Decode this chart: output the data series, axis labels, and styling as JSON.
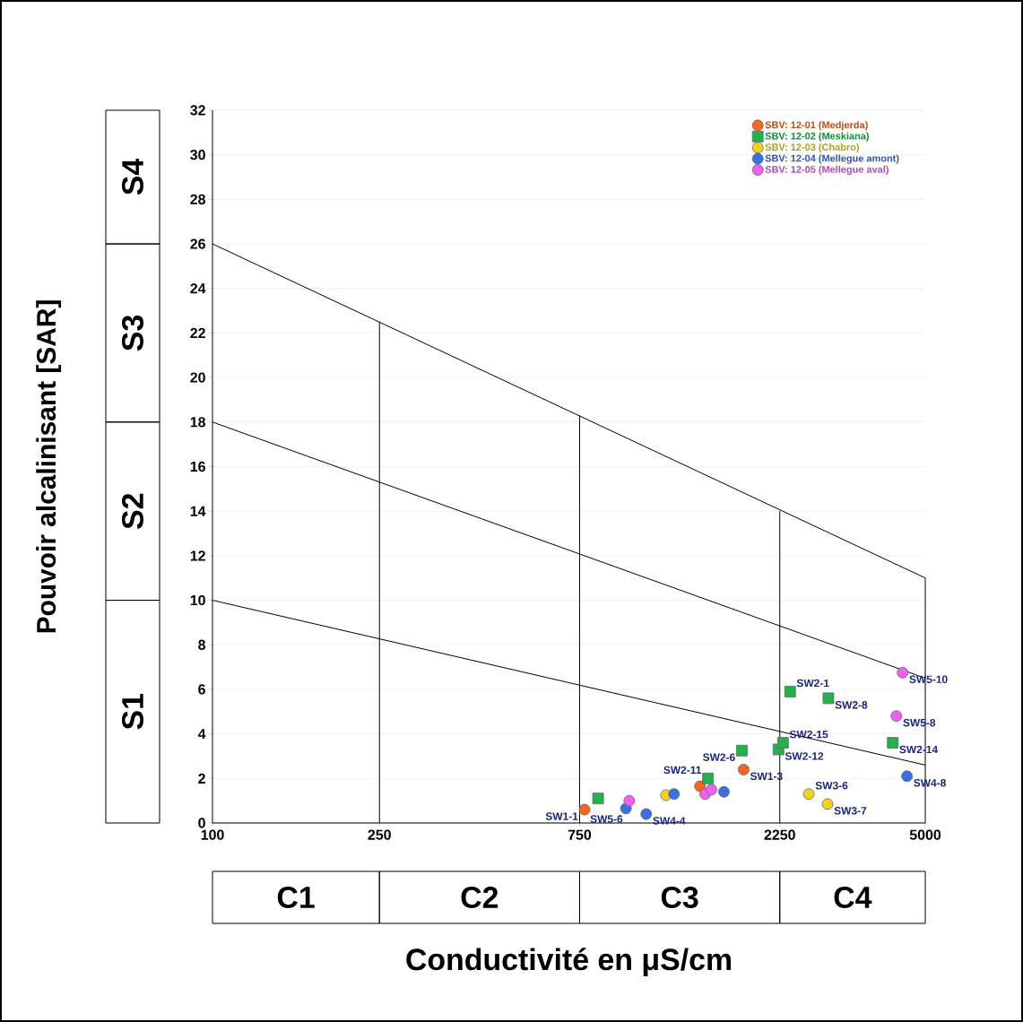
{
  "chart_data": {
    "type": "scatter",
    "xlabel": "Conductivité en μS/cm",
    "ylabel": "Pouvoir alcalinisant [SAR]",
    "log": "x",
    "xlim": [
      100,
      5000
    ],
    "xticks": [
      100,
      250,
      750,
      2250,
      5000
    ],
    "ylim": [
      0,
      32
    ],
    "yticks": [
      0,
      2,
      4,
      6,
      8,
      10,
      12,
      14,
      16,
      18,
      20,
      22,
      24,
      26,
      28,
      30,
      32
    ],
    "grid": "y",
    "legend": "top right",
    "series": [
      {
        "name": "SBV: 12-01 (Medjerda)",
        "color": "#f26522",
        "marker": "circle",
        "x": [
          771,
          1452,
          1845
        ],
        "values": [
          0.6,
          1.65,
          2.4
        ]
      },
      {
        "name": "SBV: 12-02 (Meskiana)",
        "color": "#22b14c",
        "marker": "square",
        "x": [
          830,
          1517,
          1827,
          2234,
          2290,
          2381,
          2938,
          4182
        ],
        "values": [
          1.1,
          2.0,
          3.25,
          3.3,
          3.6,
          5.9,
          5.6,
          3.6
        ]
      },
      {
        "name": "SBV: 12-03 (Chabro)",
        "color": "#f2d024",
        "marker": "circle",
        "x": [
          1205,
          2638,
          2924
        ],
        "values": [
          1.25,
          1.3,
          0.85
        ]
      },
      {
        "name": "SBV: 12-04 (Mellegue amont)",
        "color": "#3a6fe0",
        "marker": "circle",
        "x": [
          967,
          1081,
          1259,
          1656,
          4522
        ],
        "values": [
          0.65,
          0.4,
          1.3,
          1.4,
          2.1
        ]
      },
      {
        "name": "SBV: 12-05 (Mellegue aval)",
        "color": "#f060f0",
        "marker": "circle",
        "x": [
          985,
          1494,
          1546,
          4266,
          4415
        ],
        "values": [
          1.0,
          1.3,
          1.5,
          4.8,
          6.75
        ]
      },
      {
        "type": "line",
        "color": "#000000",
        "x": [
          100,
          5000
        ],
        "values": [
          26,
          11
        ]
      },
      {
        "type": "line",
        "color": "#000000",
        "x": [
          100,
          5000
        ],
        "values": [
          18,
          6.5
        ]
      },
      {
        "type": "line",
        "color": "#000000",
        "x": [
          100,
          5000
        ],
        "values": [
          10,
          2.6
        ]
      },
      {
        "type": "line",
        "color": "#000000",
        "x": [
          250,
          250
        ],
        "values": [
          0,
          22.5
        ]
      },
      {
        "type": "line",
        "color": "#000000",
        "x": [
          750,
          750
        ],
        "values": [
          0,
          18.3
        ]
      },
      {
        "type": "line",
        "color": "#000000",
        "x": [
          2250,
          2250
        ],
        "values": [
          0,
          14
        ]
      },
      {
        "type": "line",
        "color": "#000000",
        "x": [
          5000,
          5000
        ],
        "values": [
          0,
          11
        ]
      }
    ],
    "annotations": [
      "S1",
      "S2",
      "S3",
      "S4",
      "C1",
      "C2",
      "C3",
      "C4",
      {
        "text": "SW1-1",
        "x": 771,
        "y": 0.6
      },
      {
        "text": "SW1-3",
        "x": 1845,
        "y": 2.4
      },
      {
        "text": "SW2-11",
        "x": 1517,
        "y": 2.0
      },
      {
        "text": "SW2-6",
        "x": 1827,
        "y": 3.25
      },
      {
        "text": "SW2-12",
        "x": 2234,
        "y": 3.3
      },
      {
        "text": "SW2-15",
        "x": 2290,
        "y": 3.6
      },
      {
        "text": "SW2-1",
        "x": 2381,
        "y": 5.9
      },
      {
        "text": "SW2-8",
        "x": 2938,
        "y": 5.6
      },
      {
        "text": "SW2-14",
        "x": 4182,
        "y": 3.6
      },
      {
        "text": "SW3-6",
        "x": 2638,
        "y": 1.3
      },
      {
        "text": "SW3-7",
        "x": 2924,
        "y": 0.85
      },
      {
        "text": "SW4-8",
        "x": 4522,
        "y": 2.1
      },
      {
        "text": "SW5-8",
        "x": 4266,
        "y": 4.8
      },
      {
        "text": "SW5-10",
        "x": 4415,
        "y": 6.75
      },
      {
        "text": "SW5-6",
        "x": 985,
        "y": 1.0
      },
      {
        "text": "SW4-4",
        "x": 1081,
        "y": 0.4
      }
    ]
  }
}
